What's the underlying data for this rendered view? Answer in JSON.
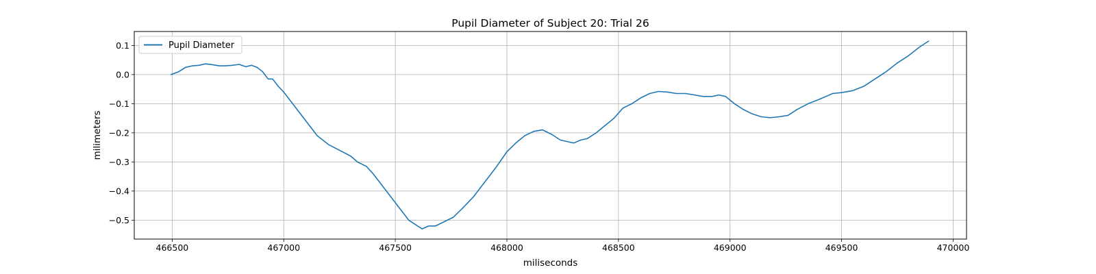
{
  "chart_data": {
    "type": "line",
    "title": "Pupil Diameter of Subject 20: Trial 26",
    "xlabel": "miliseconds",
    "ylabel": "milimeters",
    "xlim": [
      466330,
      470060
    ],
    "ylim": [
      -0.565,
      0.148
    ],
    "xticks": [
      466500,
      467000,
      467500,
      468000,
      468500,
      469000,
      469500,
      470000
    ],
    "yticks": [
      0.1,
      0.0,
      -0.1,
      -0.2,
      -0.3,
      -0.4,
      -0.5
    ],
    "grid": true,
    "legend_position": "upper-left",
    "series": [
      {
        "name": "Pupil Diameter",
        "color": "#1f77b4",
        "x": [
          466495,
          466530,
          466560,
          466590,
          466620,
          466650,
          466680,
          466710,
          466740,
          466770,
          466800,
          466830,
          466855,
          466880,
          466905,
          466930,
          466950,
          466975,
          467000,
          467050,
          467100,
          467150,
          467200,
          467250,
          467300,
          467330,
          467370,
          467400,
          467450,
          467500,
          467530,
          467560,
          467600,
          467620,
          467650,
          467680,
          467720,
          467760,
          467800,
          467850,
          467900,
          467950,
          468000,
          468040,
          468080,
          468120,
          468160,
          468200,
          468240,
          468270,
          468300,
          468330,
          468360,
          468400,
          468440,
          468480,
          468520,
          468560,
          468600,
          468640,
          468680,
          468720,
          468760,
          468800,
          468840,
          468880,
          468920,
          468950,
          468980,
          469020,
          469060,
          469100,
          469140,
          469180,
          469220,
          469260,
          469300,
          469350,
          469400,
          469430,
          469460,
          469500,
          469550,
          469600,
          469650,
          469700,
          469750,
          469800,
          469850,
          469890
        ],
        "y": [
          0.0,
          0.01,
          0.025,
          0.03,
          0.032,
          0.037,
          0.034,
          0.03,
          0.03,
          0.032,
          0.035,
          0.027,
          0.032,
          0.025,
          0.01,
          -0.015,
          -0.015,
          -0.04,
          -0.06,
          -0.11,
          -0.16,
          -0.21,
          -0.24,
          -0.26,
          -0.28,
          -0.3,
          -0.315,
          -0.34,
          -0.39,
          -0.44,
          -0.47,
          -0.5,
          -0.52,
          -0.53,
          -0.52,
          -0.52,
          -0.505,
          -0.49,
          -0.46,
          -0.42,
          -0.37,
          -0.32,
          -0.265,
          -0.235,
          -0.21,
          -0.195,
          -0.19,
          -0.205,
          -0.225,
          -0.23,
          -0.235,
          -0.225,
          -0.22,
          -0.2,
          -0.175,
          -0.15,
          -0.115,
          -0.1,
          -0.08,
          -0.065,
          -0.058,
          -0.06,
          -0.065,
          -0.065,
          -0.07,
          -0.075,
          -0.075,
          -0.07,
          -0.075,
          -0.1,
          -0.12,
          -0.135,
          -0.145,
          -0.148,
          -0.145,
          -0.14,
          -0.12,
          -0.1,
          -0.085,
          -0.075,
          -0.065,
          -0.062,
          -0.055,
          -0.04,
          -0.015,
          0.01,
          0.04,
          0.065,
          0.095,
          0.115
        ]
      }
    ]
  }
}
